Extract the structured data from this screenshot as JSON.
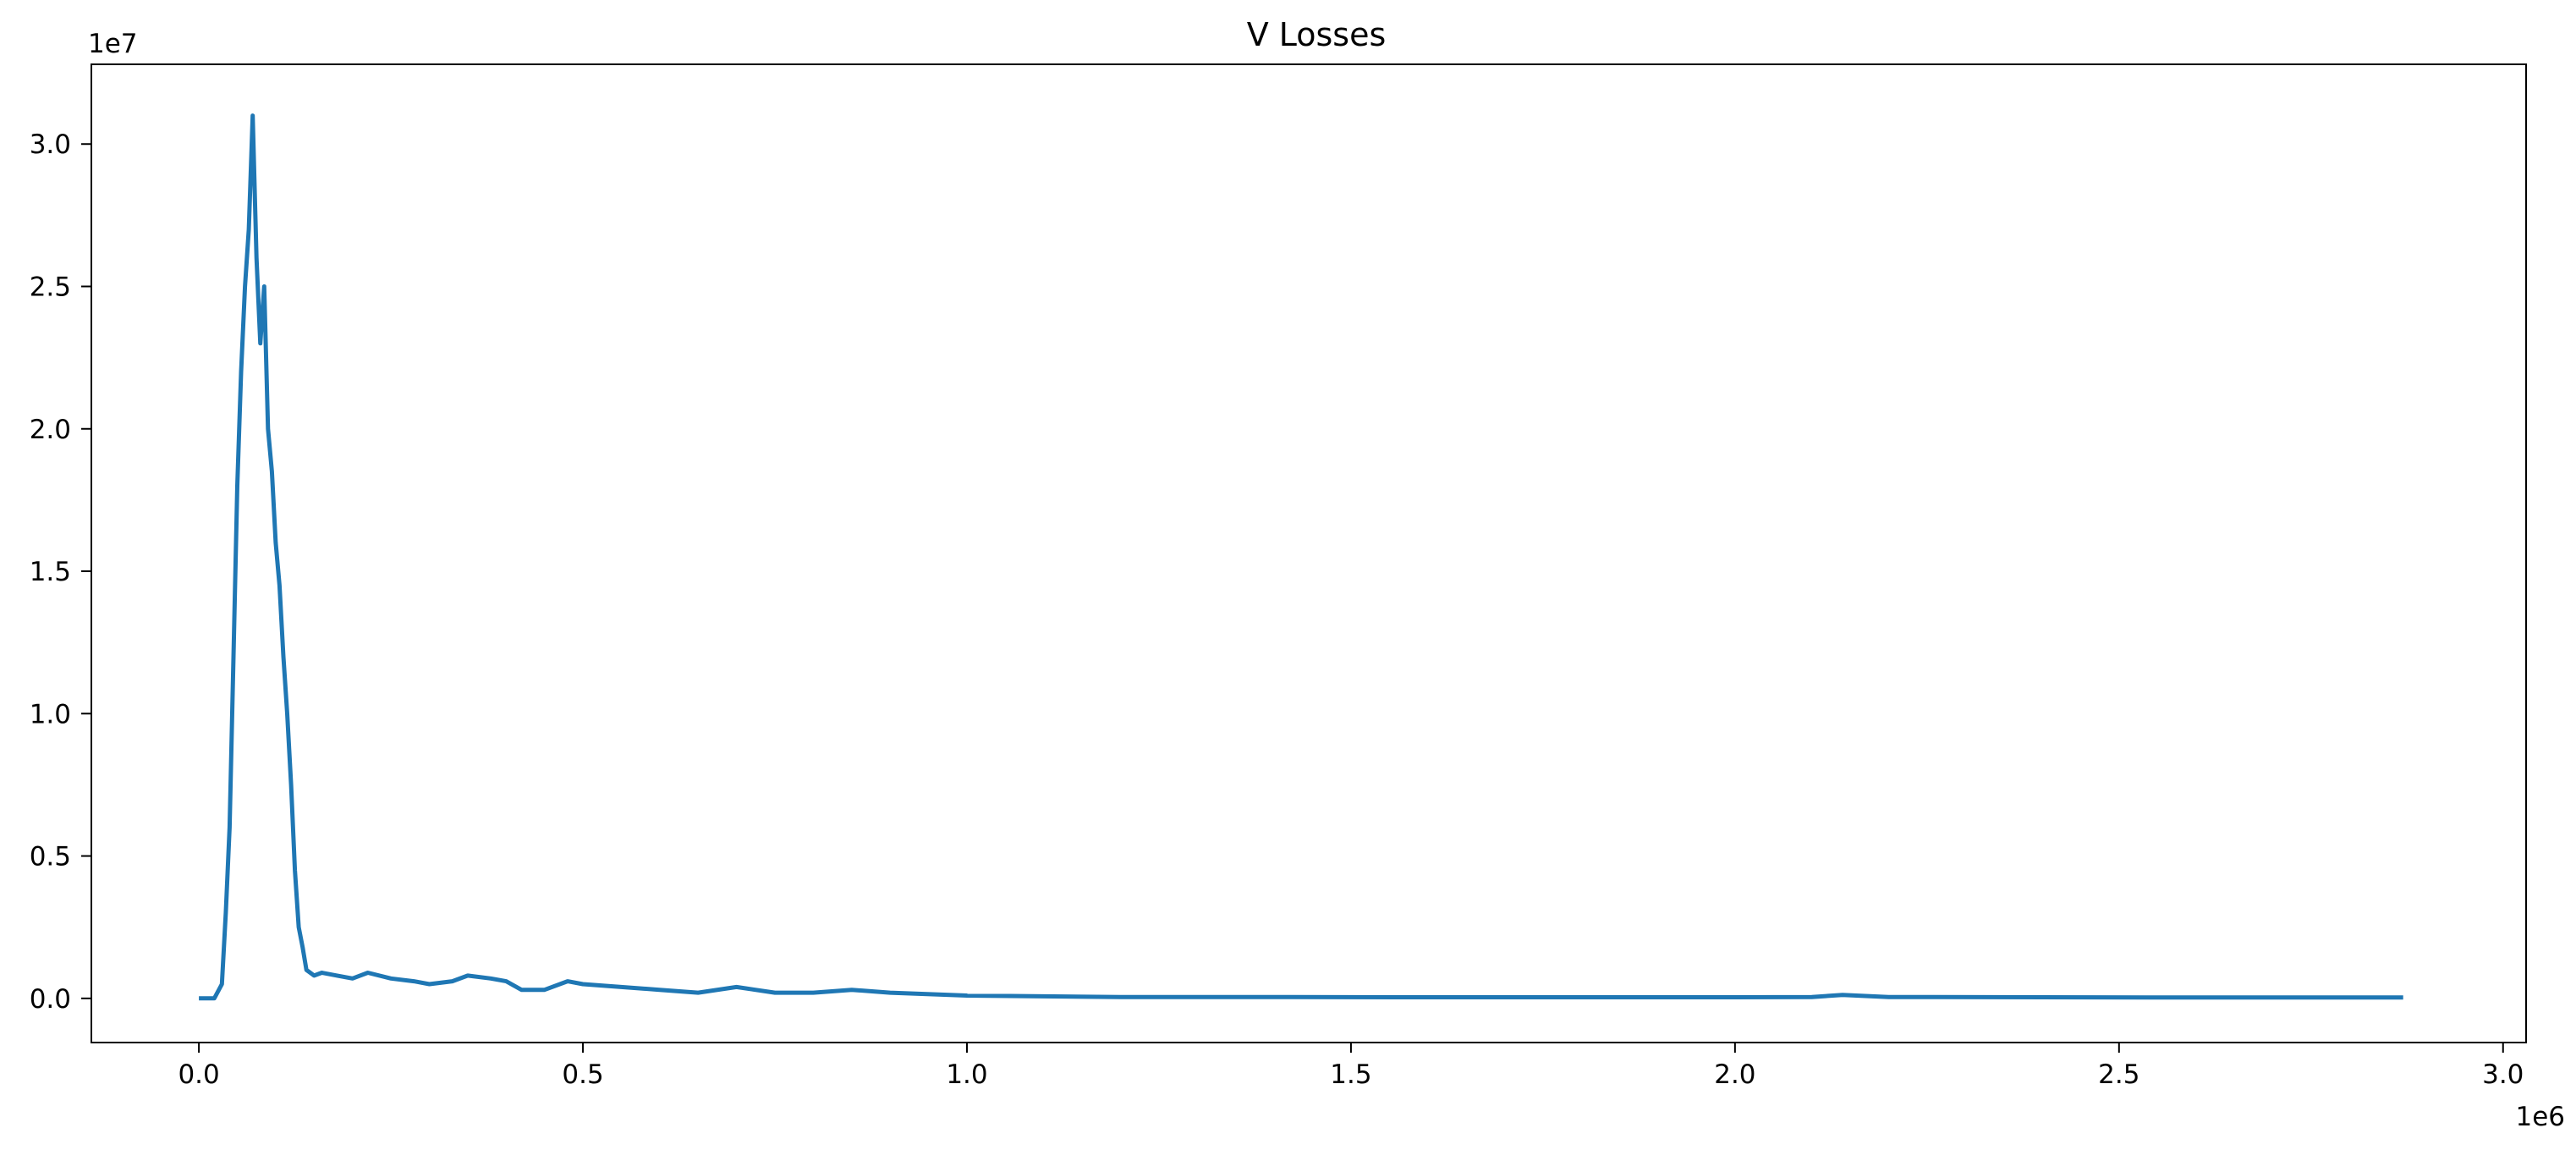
{
  "chart_data": {
    "type": "line",
    "title": "V Losses",
    "xlabel": "",
    "ylabel": "",
    "x_offset_label": "1e6",
    "y_offset_label": "1e7",
    "xlim": [
      -0.14,
      3.03
    ],
    "ylim": [
      -0.155,
      3.28
    ],
    "x_ticks": [
      {
        "value": 0.0,
        "label": "0.0"
      },
      {
        "value": 0.5,
        "label": "0.5"
      },
      {
        "value": 1.0,
        "label": "1.0"
      },
      {
        "value": 1.5,
        "label": "1.5"
      },
      {
        "value": 2.0,
        "label": "2.0"
      },
      {
        "value": 2.5,
        "label": "2.5"
      },
      {
        "value": 3.0,
        "label": "3.0"
      }
    ],
    "y_ticks": [
      {
        "value": 0.0,
        "label": "0.0"
      },
      {
        "value": 0.5,
        "label": "0.5"
      },
      {
        "value": 1.0,
        "label": "1.0"
      },
      {
        "value": 1.5,
        "label": "1.5"
      },
      {
        "value": 2.0,
        "label": "2.0"
      },
      {
        "value": 2.5,
        "label": "2.5"
      },
      {
        "value": 3.0,
        "label": "3.0"
      }
    ],
    "grid": false,
    "legend": "none",
    "series": [
      {
        "color": "#1f77b4",
        "x": [
          0.0,
          0.02,
          0.03,
          0.035,
          0.04,
          0.045,
          0.05,
          0.055,
          0.06,
          0.065,
          0.07,
          0.075,
          0.08,
          0.085,
          0.09,
          0.095,
          0.1,
          0.105,
          0.11,
          0.115,
          0.12,
          0.125,
          0.13,
          0.135,
          0.14,
          0.15,
          0.16,
          0.18,
          0.2,
          0.22,
          0.25,
          0.28,
          0.3,
          0.33,
          0.35,
          0.38,
          0.4,
          0.42,
          0.45,
          0.48,
          0.5,
          0.55,
          0.6,
          0.65,
          0.7,
          0.75,
          0.8,
          0.85,
          0.9,
          1.0,
          1.2,
          1.4,
          1.6,
          1.8,
          2.0,
          2.1,
          2.14,
          2.2,
          2.4,
          2.6,
          2.87
        ],
        "y": [
          0.0,
          0.0,
          0.05,
          0.3,
          0.6,
          1.2,
          1.8,
          2.2,
          2.5,
          2.7,
          3.1,
          2.6,
          2.3,
          2.5,
          2.0,
          1.85,
          1.6,
          1.45,
          1.2,
          1.0,
          0.75,
          0.45,
          0.25,
          0.18,
          0.1,
          0.08,
          0.09,
          0.08,
          0.07,
          0.09,
          0.07,
          0.06,
          0.05,
          0.06,
          0.08,
          0.07,
          0.06,
          0.03,
          0.03,
          0.06,
          0.05,
          0.04,
          0.03,
          0.02,
          0.04,
          0.02,
          0.02,
          0.03,
          0.02,
          0.01,
          0.005,
          0.005,
          0.004,
          0.004,
          0.004,
          0.005,
          0.012,
          0.005,
          0.004,
          0.003,
          0.003
        ]
      }
    ]
  }
}
